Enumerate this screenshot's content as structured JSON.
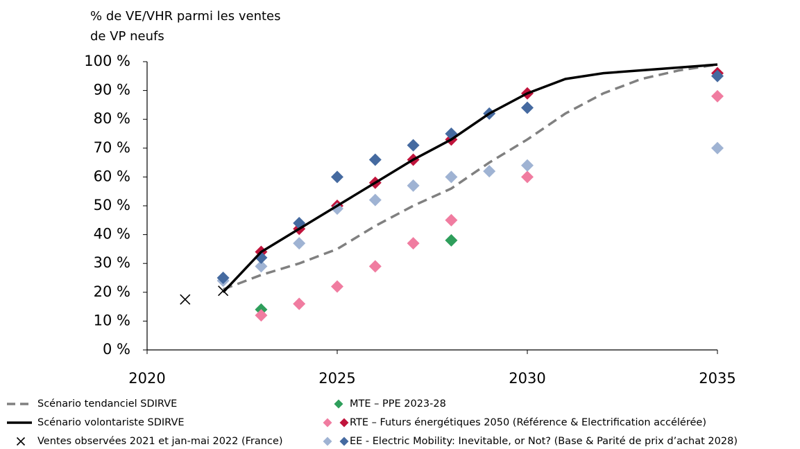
{
  "chart_data": {
    "type": "line",
    "ylabel": [
      "% de VE/VHR parmi les ventes",
      "de VP neufs"
    ],
    "xlim": [
      2020,
      2035
    ],
    "xticks": [
      2020,
      2025,
      2030,
      2035
    ],
    "ylim": [
      0,
      100
    ],
    "yticks": [
      {
        "value": 0,
        "label": "0 %"
      },
      {
        "value": 10,
        "label": "10 %"
      },
      {
        "value": 20,
        "label": "20 %"
      },
      {
        "value": 30,
        "label": "30 %"
      },
      {
        "value": 40,
        "label": "40 %"
      },
      {
        "value": 50,
        "label": "50 %"
      },
      {
        "value": 60,
        "label": "60 %"
      },
      {
        "value": 70,
        "label": "70 %"
      },
      {
        "value": 80,
        "label": "80 %"
      },
      {
        "value": 90,
        "label": "90 %"
      },
      {
        "value": 100,
        "label": "100 %"
      }
    ],
    "series": [
      {
        "name": "Scénario tendanciel SDIRVE",
        "kind": "line",
        "dashed": true,
        "color": "#808080",
        "x": [
          2022,
          2023,
          2024,
          2025,
          2026,
          2027,
          2028,
          2029,
          2030,
          2031,
          2032,
          2033,
          2034,
          2035
        ],
        "values": [
          21,
          26,
          30,
          35,
          43,
          50,
          56,
          65,
          73,
          82,
          89,
          94,
          97,
          99
        ]
      },
      {
        "name": "Scénario volontariste SDIRVE",
        "kind": "line",
        "dashed": false,
        "color": "#000000",
        "x": [
          2022,
          2023,
          2024,
          2025,
          2026,
          2027,
          2028,
          2029,
          2030,
          2031,
          2032,
          2033,
          2034,
          2035
        ],
        "values": [
          20,
          34,
          42,
          50,
          58,
          66,
          73,
          82,
          89,
          94,
          96,
          97,
          98,
          99
        ]
      },
      {
        "name": "Ventes observées 2021 et jan-mai 2022 (France)",
        "kind": "cross",
        "color": "#000000",
        "x": [
          2021,
          2022
        ],
        "values": [
          17.5,
          20.5
        ]
      },
      {
        "name": "MTE – PPE 2023-28",
        "kind": "scatter",
        "markers": [
          {
            "color": "#2e9e5b",
            "x": [
              2023,
              2028
            ],
            "values": [
              14,
              38
            ]
          }
        ]
      },
      {
        "name": "RTE – Futurs énergétiques 2050 (Référence & Electrification accélérée)",
        "kind": "scatter",
        "markers": [
          {
            "color": "#f07ca0",
            "x": [
              2023,
              2024,
              2025,
              2026,
              2027,
              2028,
              2030,
              2035
            ],
            "values": [
              12,
              16,
              22,
              29,
              37,
              45,
              60,
              88
            ]
          },
          {
            "color": "#c0143c",
            "x": [
              2023,
              2024,
              2025,
              2026,
              2027,
              2028,
              2030,
              2035
            ],
            "values": [
              34,
              42,
              50,
              58,
              66,
              73,
              89,
              96
            ]
          }
        ]
      },
      {
        "name": "EE - Electric Mobility: Inevitable, or Not? (Base & Parité de prix d’achat 2028)",
        "kind": "scatter",
        "markers": [
          {
            "color": "#9fb3d3",
            "x": [
              2022,
              2023,
              2024,
              2025,
              2026,
              2027,
              2028,
              2029,
              2030,
              2035
            ],
            "values": [
              24,
              29,
              37,
              49,
              52,
              57,
              60,
              62,
              64,
              70
            ]
          },
          {
            "color": "#456aa0",
            "x": [
              2022,
              2023,
              2024,
              2025,
              2026,
              2027,
              2028,
              2029,
              2030,
              2035
            ],
            "values": [
              25,
              32,
              44,
              60,
              66,
              71,
              75,
              82,
              84,
              95
            ]
          }
        ]
      }
    ]
  }
}
